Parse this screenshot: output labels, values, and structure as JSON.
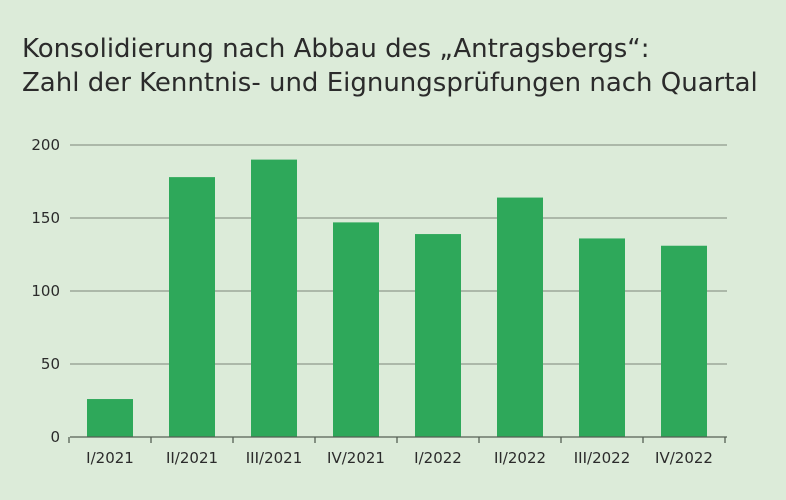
{
  "chart_data": {
    "type": "bar",
    "title": "Konsolidierung nach Abbau des „Antragsbergs“:",
    "subtitle": "Zahl der Kenntnis- und Eignungsprüfungen nach Quartal",
    "categories": [
      "I/2021",
      "II/2021",
      "III/2021",
      "IV/2021",
      "I/2022",
      "II/2022",
      "III/2022",
      "IV/2022"
    ],
    "values": [
      26,
      178,
      190,
      147,
      139,
      164,
      136,
      131
    ],
    "ylim": [
      0,
      200
    ],
    "yticks": [
      0,
      50,
      100,
      150,
      200
    ],
    "xlabel": "",
    "ylabel": "",
    "grid": true,
    "bar_color": "#2ea85a",
    "grid_color": "#8f9a8d",
    "background": "#dcebd9"
  }
}
